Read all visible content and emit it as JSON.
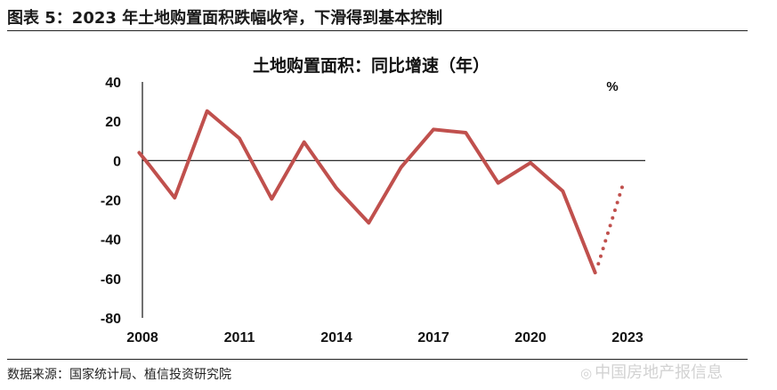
{
  "figure": {
    "title": "图表 5：2023 年土地购置面积跌幅收窄，下滑得到基本控制",
    "source": "数据来源：国家统计局、植信投资研究院",
    "watermark": "中国房地产报信息",
    "watermark_icon": "weibo-icon"
  },
  "chart_data": {
    "type": "line",
    "title": "土地购置面积：同比增速（年）",
    "unit": "%",
    "xlabel": "",
    "ylabel": "",
    "xlim": [
      2008,
      2023
    ],
    "ylim": [
      -80,
      40
    ],
    "yticks": [
      40,
      20,
      0,
      -20,
      -40,
      -60,
      -80
    ],
    "xticks": [
      "2008",
      "2011",
      "2014",
      "2017",
      "2020",
      "2023"
    ],
    "xtick_values": [
      2008,
      2011,
      2014,
      2017,
      2020,
      2023
    ],
    "grid": false,
    "legend": "none",
    "series": [
      {
        "style": "solid",
        "color": "#c0504d",
        "points": [
          [
            2007.9,
            4
          ],
          [
            2008.2,
            -2
          ],
          [
            2009,
            -18.9
          ],
          [
            2010,
            25.2
          ],
          [
            2011,
            11.3
          ],
          [
            2012,
            -19.5
          ],
          [
            2013,
            9.4
          ],
          [
            2014,
            -14
          ],
          [
            2015,
            -31.7
          ],
          [
            2016,
            -3.4
          ],
          [
            2017,
            15.8
          ],
          [
            2018,
            14.2
          ],
          [
            2019,
            -11.4
          ],
          [
            2020,
            -1.1
          ],
          [
            2021,
            -15.5
          ],
          [
            2022,
            -57
          ]
        ]
      },
      {
        "style": "dotted",
        "color": "#c0504d",
        "points": [
          [
            2022.1,
            -52.5
          ],
          [
            2022.9,
            -10
          ]
        ]
      }
    ]
  }
}
